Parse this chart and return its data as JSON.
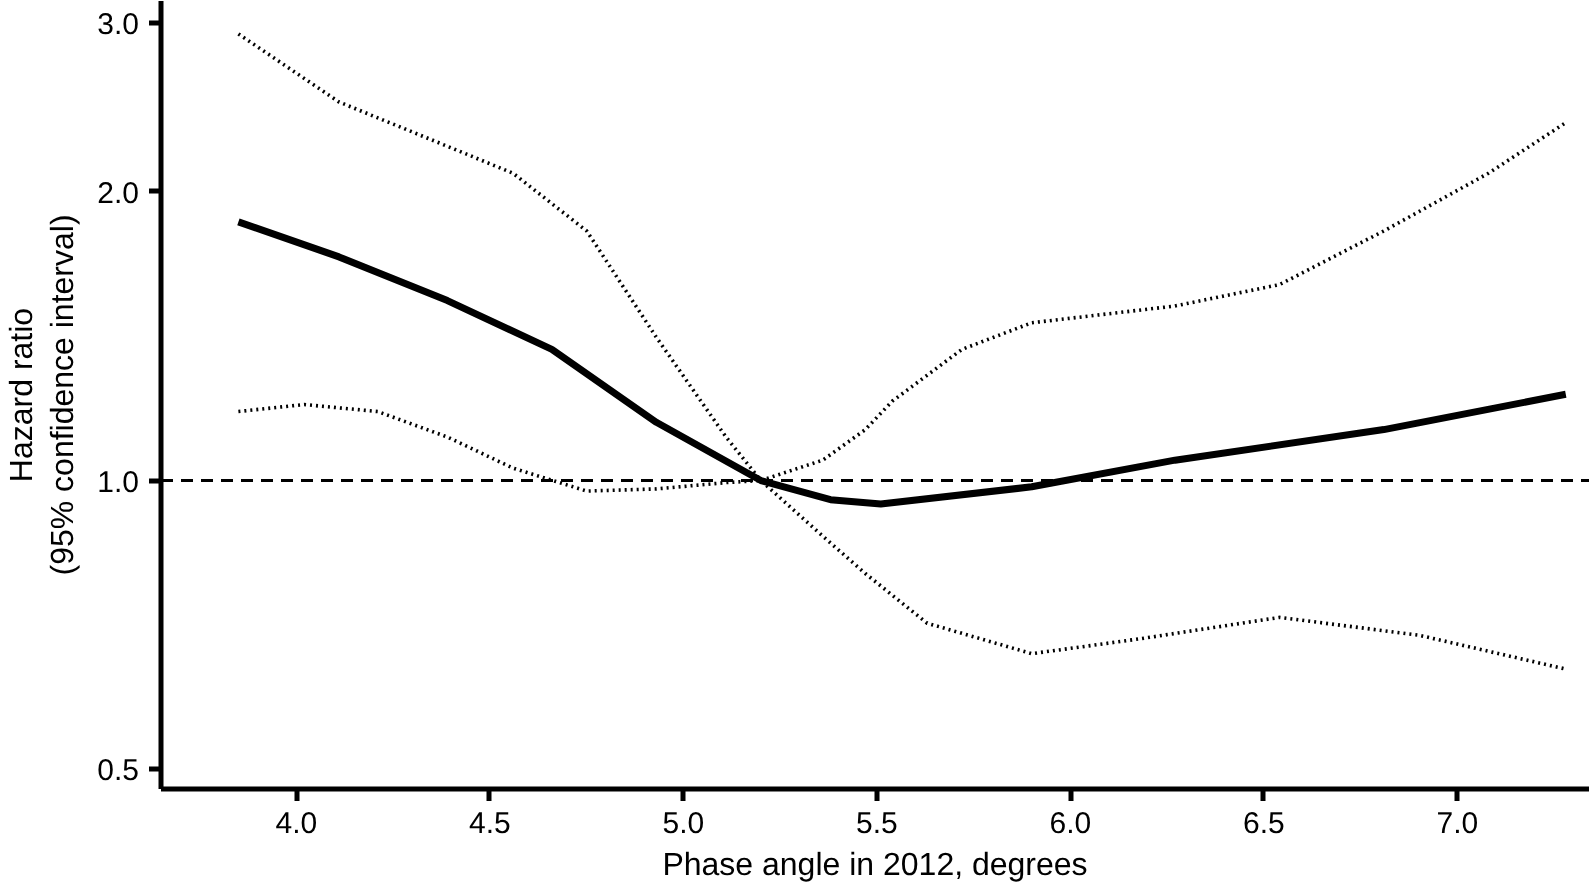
{
  "chart_data": {
    "type": "line",
    "xlabel": "Phase angle in 2012, degrees",
    "ylabel": "Hazard ratio\n(95% confidence interval)",
    "log": "y",
    "grid": false,
    "marker": "none",
    "xlim": [
      3.65,
      7.34
    ],
    "ylim": [
      0.477,
      3.16
    ],
    "xticks": [
      {
        "value": 4,
        "label": "4.0"
      },
      {
        "value": 4.5,
        "label": "4.5"
      },
      {
        "value": 5,
        "label": "5.0"
      },
      {
        "value": 5.5,
        "label": "5.5"
      },
      {
        "value": 6,
        "label": "6.0"
      },
      {
        "value": 6.5,
        "label": "6.5"
      },
      {
        "value": 7,
        "label": "7.0"
      }
    ],
    "yticks": [
      {
        "value": 0.5,
        "label": "0.5"
      },
      {
        "value": 1,
        "label": "1.0"
      },
      {
        "value": 2,
        "label": "2.0"
      },
      {
        "value": 3,
        "label": "3.0"
      }
    ],
    "series": [
      {
        "color": "#000000",
        "line_style": "solid",
        "x": [
          3.85,
          4.11,
          4.39,
          4.66,
          4.93,
          5.2,
          5.38,
          5.51,
          5.9,
          6.27,
          6.81,
          7.28
        ],
        "values": [
          1.86,
          1.71,
          1.54,
          1.37,
          1.15,
          1.0,
          0.955,
          0.945,
          0.985,
          1.05,
          1.13,
          1.23
        ]
      },
      {
        "color": "#000000",
        "line_style": "dotted",
        "x": [
          3.85,
          4.11,
          4.39,
          4.56,
          4.75,
          4.93,
          5.11,
          5.2,
          5.36,
          5.47,
          5.54,
          5.72,
          5.9,
          6.27,
          6.54,
          6.81,
          7.08,
          7.28
        ],
        "values": [
          2.92,
          2.48,
          2.23,
          2.09,
          1.82,
          1.41,
          1.11,
          1.0,
          1.05,
          1.13,
          1.21,
          1.37,
          1.46,
          1.52,
          1.6,
          1.82,
          2.09,
          2.36
        ]
      },
      {
        "color": "#000000",
        "line_style": "dotted",
        "x": [
          3.85,
          4.02,
          4.21,
          4.39,
          4.56,
          4.75,
          4.93,
          5.11,
          5.2,
          5.36,
          5.47,
          5.63,
          5.9,
          6.18,
          6.54,
          6.9,
          7.28
        ],
        "values": [
          1.18,
          1.2,
          1.18,
          1.11,
          1.03,
          0.975,
          0.98,
          0.995,
          1.0,
          0.875,
          0.8,
          0.71,
          0.66,
          0.684,
          0.72,
          0.69,
          0.636
        ]
      }
    ],
    "ref_lines": [
      {
        "axis": "y",
        "value": 1,
        "line_style": "dashed",
        "color": "#000000"
      }
    ]
  }
}
